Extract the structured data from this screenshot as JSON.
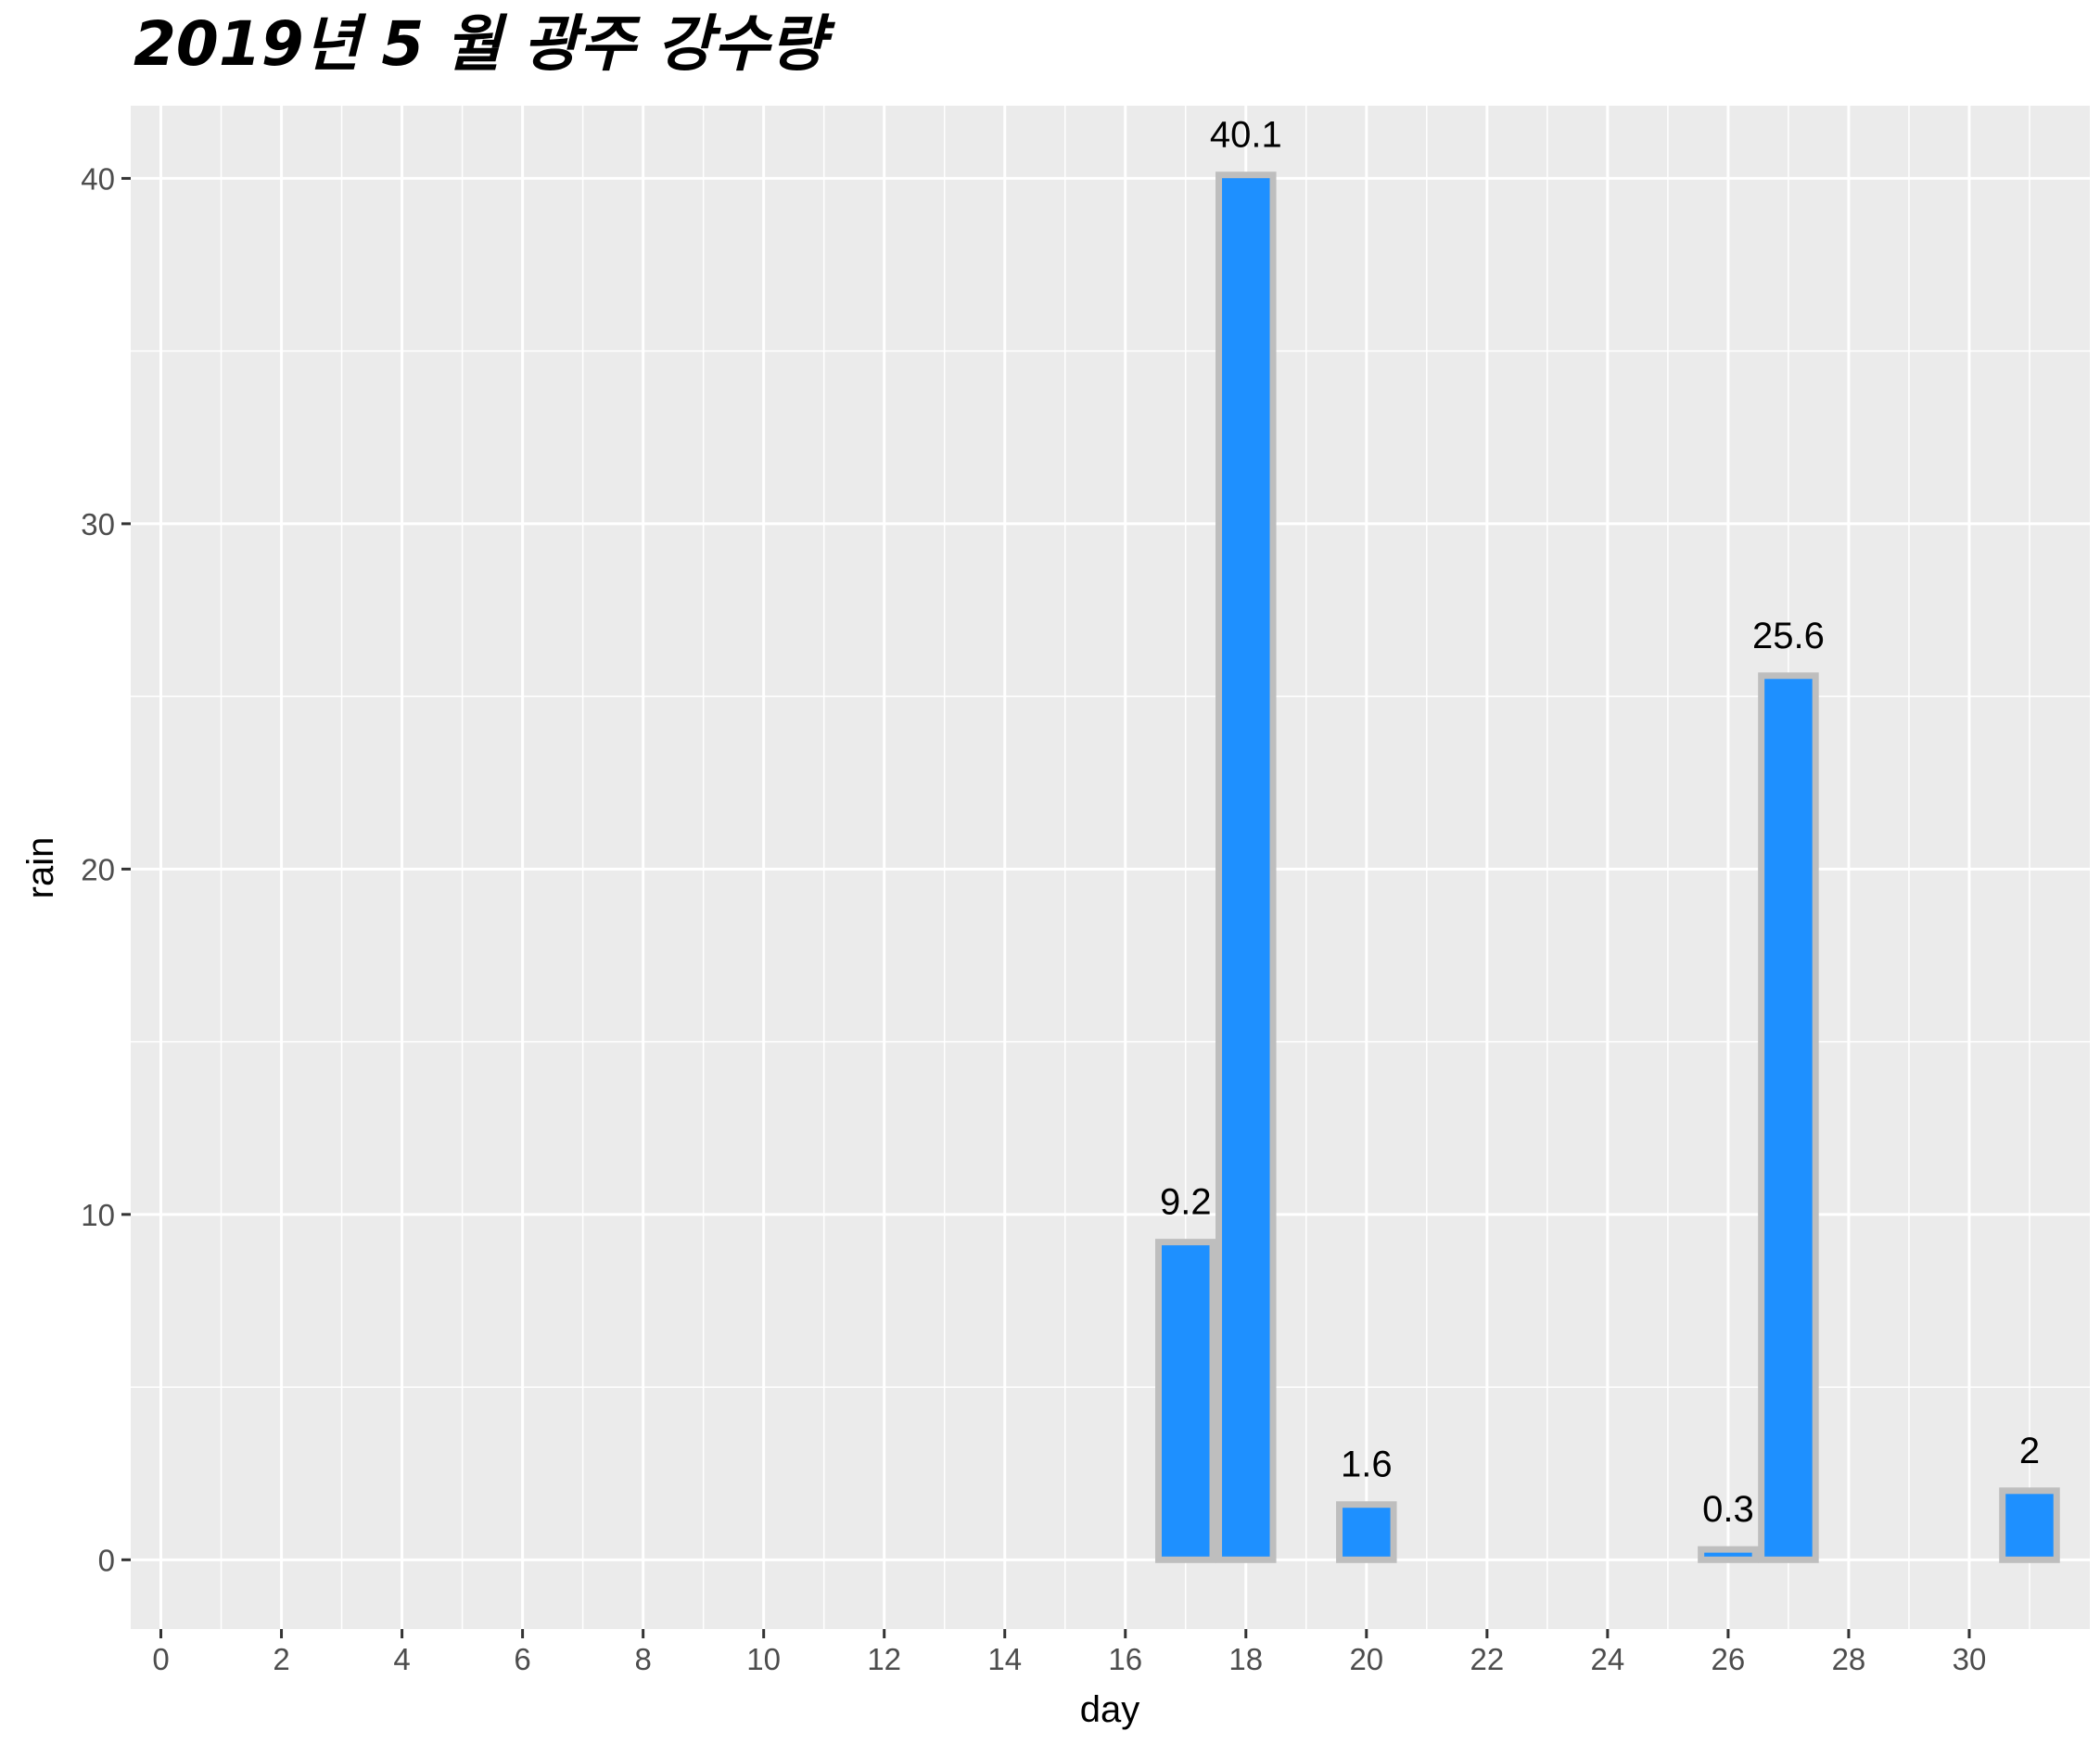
{
  "chart_data": {
    "type": "bar",
    "title": "2019년 5 월 광주 강수량",
    "xlabel": "day",
    "ylabel": "rain",
    "x": [
      17,
      18,
      20,
      26,
      27,
      31
    ],
    "values": [
      9.2,
      40.1,
      1.6,
      0.3,
      25.6,
      2
    ],
    "data_labels": [
      "9.2",
      "40.1",
      "1.6",
      "0.3",
      "25.6",
      "2"
    ],
    "xlim": [
      -0.5,
      32
    ],
    "ylim": [
      -2.005,
      42.105
    ],
    "x_ticks": [
      0,
      2,
      4,
      6,
      8,
      10,
      12,
      14,
      16,
      18,
      20,
      22,
      24,
      26,
      28,
      30
    ],
    "x_tick_labels": [
      "0",
      "2",
      "4",
      "6",
      "8",
      "10",
      "12",
      "14",
      "16",
      "18",
      "20",
      "22",
      "24",
      "26",
      "28",
      "30"
    ],
    "y_ticks": [
      0,
      10,
      20,
      30,
      40
    ],
    "y_tick_labels": [
      "0",
      "10",
      "20",
      "30",
      "40"
    ],
    "grid": true,
    "legend": "none",
    "colors": {
      "bar_fill": "#1E90FF",
      "bar_outline": "#BEBEBE",
      "panel_background": "#EBEBEB",
      "grid_line": "#FFFFFF"
    }
  }
}
